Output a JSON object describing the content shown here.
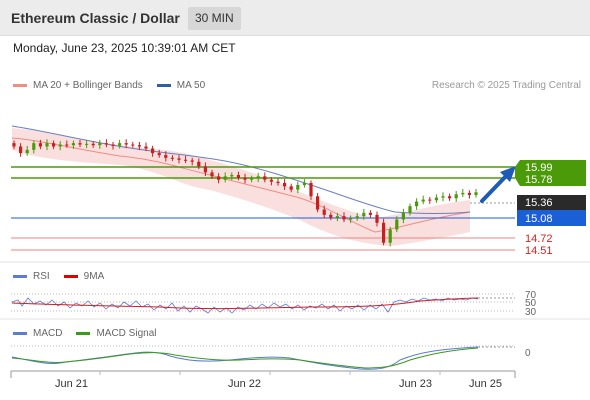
{
  "header": {
    "title": "Ethereum Classic / Dollar",
    "timeframe": "30 MIN"
  },
  "timestamp": "Monday, June 23, 2025 10:39:01 AM CET",
  "main_legend": {
    "items": [
      {
        "label": "MA 20 + Bollinger Bands",
        "color": "#f28b82"
      },
      {
        "label": "MA 50",
        "color": "#2f5fa6"
      }
    ]
  },
  "credit": "Research © 2025 Trading Central",
  "rsi_legend": {
    "items": [
      {
        "label": "RSI",
        "color": "#5b7bd5"
      },
      {
        "label": "9MA",
        "color": "#e00000"
      }
    ]
  },
  "macd_legend": {
    "items": [
      {
        "label": "MACD",
        "color": "#5b7bd5"
      },
      {
        "label": "MACD Signal",
        "color": "#3a9a1a"
      }
    ]
  },
  "levels": {
    "resistance": [
      "15.99",
      "15.78"
    ],
    "current": "15.36",
    "pivot": "15.08",
    "support": [
      "14.72",
      "14.51"
    ]
  },
  "colors": {
    "resistance": "#4a9a0a",
    "pivot": "#1a5fd6",
    "support": "#e03030",
    "current": "#2a2a2a",
    "up": "#4a9a0a",
    "down": "#c81e1e",
    "arrow": "#1e5bb8"
  },
  "rsi_axis": [
    "70",
    "50",
    "30"
  ],
  "macd_axis": [
    "0"
  ],
  "x_axis": [
    "Jun 21",
    "Jun 22",
    "Jun 23",
    "Jun 25"
  ],
  "chart_data": {
    "type": "candlestick",
    "instrument": "Ethereum Classic / Dollar",
    "interval": "30 MIN",
    "price_range": [
      14.4,
      16.6
    ],
    "closes": [
      16.05,
      15.95,
      16.0,
      16.1,
      16.05,
      16.1,
      16.05,
      16.08,
      16.07,
      16.1,
      16.08,
      16.09,
      16.07,
      16.1,
      16.08,
      16.06,
      16.1,
      16.08,
      16.07,
      16.05,
      16.02,
      15.95,
      15.92,
      15.88,
      15.87,
      15.85,
      15.84,
      15.82,
      15.75,
      15.66,
      15.6,
      15.55,
      15.6,
      15.62,
      15.58,
      15.55,
      15.57,
      15.6,
      15.55,
      15.52,
      15.5,
      15.45,
      15.4,
      15.47,
      15.5,
      15.3,
      15.1,
      15.02,
      14.98,
      15.0,
      14.95,
      14.97,
      15.0,
      15.05,
      15.02,
      14.9,
      14.6,
      14.8,
      14.95,
      15.05,
      15.15,
      15.22,
      15.25,
      15.24,
      15.28,
      15.3,
      15.27,
      15.33,
      15.35,
      15.32,
      15.36
    ],
    "levels": {
      "resistance": [
        15.99,
        15.78
      ],
      "current": 15.36,
      "pivot": 15.08,
      "support": [
        14.72,
        14.51
      ]
    }
  }
}
